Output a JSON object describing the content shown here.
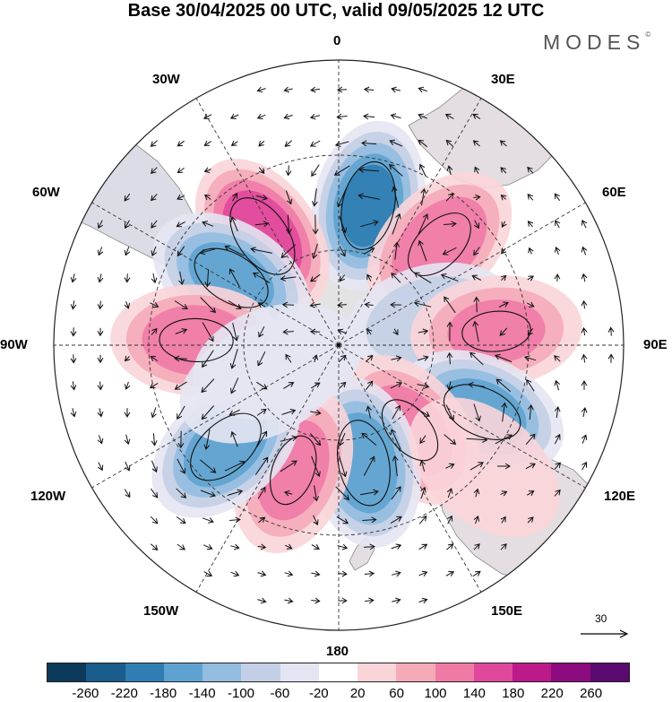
{
  "title": "Base 30/04/2025 00 UTC, valid 09/05/2025 12 UTC",
  "brand": {
    "name": "MODES",
    "mark": "©"
  },
  "longitude_labels": {
    "lon_0": "0",
    "lon_30e": "30E",
    "lon_60e": "60E",
    "lon_90e": "90E",
    "lon_120e": "120E",
    "lon_150e": "150E",
    "lon_180": "180",
    "lon_150w": "150W",
    "lon_120w": "120W",
    "lon_90w": "90W",
    "lon_60w": "60W",
    "lon_30w": "30W"
  },
  "vector_scale": {
    "value": "30"
  },
  "colorbar": {
    "colors": [
      "#0b3a5a",
      "#1a5c8c",
      "#2f7db3",
      "#5ea3cf",
      "#92bde0",
      "#c3cfe6",
      "#e4e5f2",
      "#ffffff",
      "#f9d5d9",
      "#f5aab8",
      "#ef7aa6",
      "#e0489b",
      "#bb1a88",
      "#8c0c7f",
      "#5a0a6e"
    ],
    "ticks": [
      "-260",
      "-220",
      "-180",
      "-140",
      "-100",
      "-60",
      "-20",
      "20",
      "60",
      "100",
      "140",
      "180",
      "220",
      "260"
    ]
  },
  "anomaly_centers": [
    {
      "lon": 12,
      "lat": -45,
      "value": -180
    },
    {
      "lon": -35,
      "lat": -48,
      "value": 170
    },
    {
      "lon": -58,
      "lat": -50,
      "value": -150
    },
    {
      "lon": 45,
      "lat": -45,
      "value": 130
    },
    {
      "lon": -88,
      "lat": -45,
      "value": 120
    },
    {
      "lon": 75,
      "lat": -60,
      "value": -90
    },
    {
      "lon": 85,
      "lat": -40,
      "value": 100
    },
    {
      "lon": 115,
      "lat": -40,
      "value": -150
    },
    {
      "lon": 140,
      "lat": -55,
      "value": 110
    },
    {
      "lon": 168,
      "lat": -52,
      "value": -170
    },
    {
      "lon": -160,
      "lat": -48,
      "value": 110
    },
    {
      "lon": -132,
      "lat": -42,
      "value": -160
    },
    {
      "lon": -105,
      "lat": -70,
      "value": -50
    },
    {
      "lon": -115,
      "lat": -63,
      "value": -50
    },
    {
      "lon": 130,
      "lat": -30,
      "value": 50
    }
  ]
}
